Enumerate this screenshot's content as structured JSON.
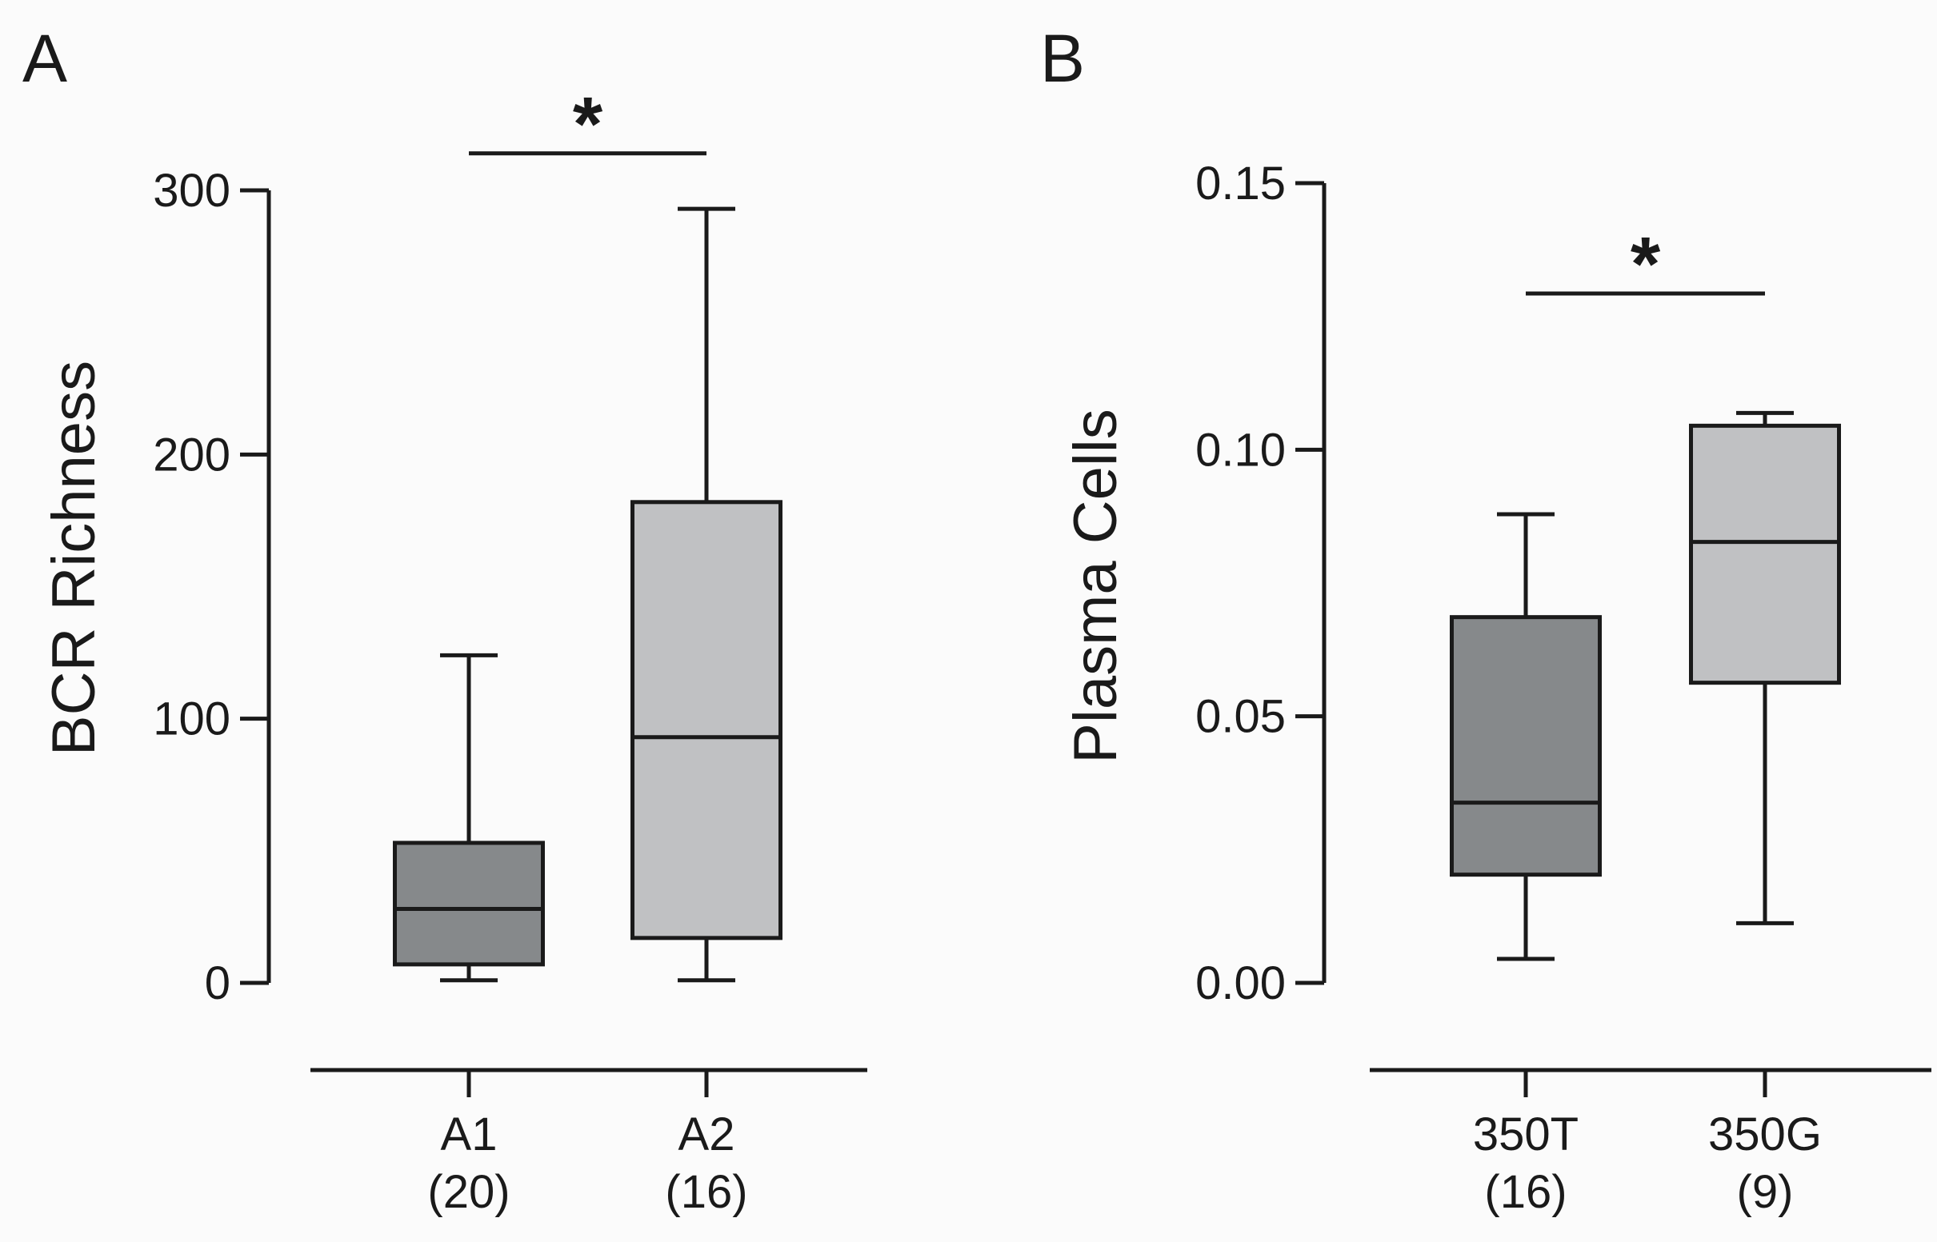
{
  "chart_data": [
    {
      "type": "box",
      "panel_label": "A",
      "ylabel": "BCR Richness",
      "ylim": [
        0,
        300
      ],
      "yticks": [
        0,
        100,
        200,
        300
      ],
      "ytick_labels": [
        "0",
        "100",
        "200",
        "300"
      ],
      "categories": [
        {
          "label": "A1",
          "n_label": "(20)"
        },
        {
          "label": "A2",
          "n_label": "(16)"
        }
      ],
      "boxes": [
        {
          "name": "A1",
          "min": 1,
          "q1": 7,
          "median": 28,
          "q3": 53,
          "max": 124,
          "color": "#86898b"
        },
        {
          "name": "A2",
          "min": 1,
          "q1": 17,
          "median": 93,
          "q3": 182,
          "max": 293,
          "color": "#c0c1c3"
        }
      ],
      "significance": {
        "label": "*",
        "between": [
          "A1",
          "A2"
        ],
        "y": 314
      }
    },
    {
      "type": "box",
      "panel_label": "B",
      "ylabel": "Plasma Cells",
      "ylim": [
        0,
        0.15
      ],
      "yticks": [
        0,
        0.05,
        0.1,
        0.15
      ],
      "ytick_labels": [
        "0.00",
        "0.05",
        "0.10",
        "0.15"
      ],
      "categories": [
        {
          "label": "350T",
          "n_label": "(16)"
        },
        {
          "label": "350G",
          "n_label": "(9)"
        }
      ],
      "boxes": [
        {
          "name": "350T",
          "min": 0.0045,
          "q1": 0.0203,
          "median": 0.0338,
          "q3": 0.0686,
          "max": 0.0879,
          "color": "#86898b"
        },
        {
          "name": "350G",
          "min": 0.0112,
          "q1": 0.0563,
          "median": 0.0827,
          "q3": 0.1045,
          "max": 0.1069,
          "color": "#c0c1c3"
        }
      ],
      "significance": {
        "label": "*",
        "between": [
          "350T",
          "350G"
        ],
        "y": 0.1293
      }
    }
  ]
}
